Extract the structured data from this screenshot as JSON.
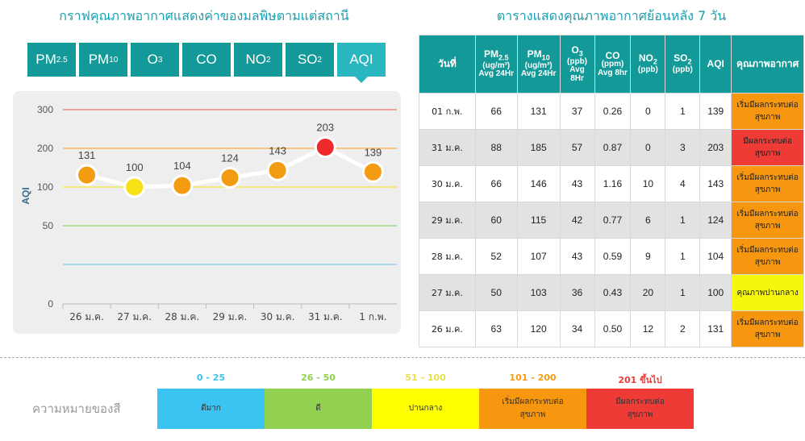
{
  "chart_title": "กราฟคุณภาพอากาศแสดงค่าของมลพิษตามแต่สถานี",
  "table_title": "ตารางแสดงคุณภาพอากาศย้อนหลัง 7 วัน",
  "tabs": [
    {
      "main": "PM",
      "sub": "2.5",
      "active": false
    },
    {
      "main": "PM",
      "sub": "10",
      "active": false
    },
    {
      "main": "O",
      "sub": "3",
      "active": false
    },
    {
      "main": "CO",
      "sub": "",
      "active": false
    },
    {
      "main": "NO",
      "sub": "2",
      "active": false
    },
    {
      "main": "SO",
      "sub": "2",
      "active": false
    },
    {
      "main": "AQI",
      "sub": "",
      "active": true
    }
  ],
  "chart_data": {
    "type": "line",
    "title": "",
    "ylabel": "AQI",
    "categories": [
      "26 ม.ค.",
      "27 ม.ค.",
      "28 ม.ค.",
      "29 ม.ค.",
      "30 ม.ค.",
      "31 ม.ค.",
      "1 ก.พ."
    ],
    "values": [
      131,
      100,
      104,
      124,
      143,
      203,
      139
    ],
    "point_colors": [
      "#f39c12",
      "#f7e016",
      "#f39c12",
      "#f39c12",
      "#f39c12",
      "#ee2a2a",
      "#f39c12"
    ],
    "y_ticks": [
      0,
      25,
      50,
      100,
      200,
      300
    ],
    "grid_lines": [
      {
        "value": 300,
        "color": "#f08a80"
      },
      {
        "value": 200,
        "color": "#f5b754"
      },
      {
        "value": 100,
        "color": "#f2e84a"
      },
      {
        "value": 50,
        "color": "#9fd67c"
      },
      {
        "value": 25,
        "color": "#8fd3ec"
      }
    ],
    "legend": "none"
  },
  "table": {
    "headers": [
      {
        "label": "วันที่",
        "sub": "",
        "unit": "",
        "thai": true
      },
      {
        "label": "PM",
        "sub": "2.5",
        "unit": "(ug/m³) Avg 24Hr",
        "thai": false
      },
      {
        "label": "PM",
        "sub": "10",
        "unit": "(ug/m³) Avg 24Hr",
        "thai": false
      },
      {
        "label": "O",
        "sub": "3",
        "unit": "(ppb) Avg 8Hr",
        "thai": false
      },
      {
        "label": "CO",
        "sub": "",
        "unit": "(ppm) Avg 8hr",
        "thai": false
      },
      {
        "label": "NO",
        "sub": "2",
        "unit": "(ppb)",
        "thai": false
      },
      {
        "label": "SO",
        "sub": "2",
        "unit": "(ppb)",
        "thai": false
      },
      {
        "label": "AQI",
        "sub": "",
        "unit": "",
        "thai": false
      },
      {
        "label": "คุณภาพอากาศ",
        "sub": "",
        "unit": "",
        "thai": true
      }
    ],
    "rows": [
      {
        "date": "01 ก.พ.",
        "pm25": "66",
        "pm10": "131",
        "o3": "37",
        "co": "0.26",
        "no2": "0",
        "so2": "1",
        "aqi": "139",
        "quality": "เริ่มมีผลกระทบต่อสุขภาพ",
        "color": "#f7960f"
      },
      {
        "date": "31 ม.ค.",
        "pm25": "88",
        "pm10": "185",
        "o3": "57",
        "co": "0.87",
        "no2": "0",
        "so2": "3",
        "aqi": "203",
        "quality": "มีผลกระทบต่อสุขภาพ",
        "color": "#ef3b36"
      },
      {
        "date": "30 ม.ค.",
        "pm25": "66",
        "pm10": "146",
        "o3": "43",
        "co": "1.16",
        "no2": "10",
        "so2": "4",
        "aqi": "143",
        "quality": "เริ่มมีผลกระทบต่อสุขภาพ",
        "color": "#f7960f"
      },
      {
        "date": "29 ม.ค.",
        "pm25": "60",
        "pm10": "115",
        "o3": "42",
        "co": "0.77",
        "no2": "6",
        "so2": "1",
        "aqi": "124",
        "quality": "เริ่มมีผลกระทบต่อสุขภาพ",
        "color": "#f7960f"
      },
      {
        "date": "28 ม.ค.",
        "pm25": "52",
        "pm10": "107",
        "o3": "43",
        "co": "0.59",
        "no2": "9",
        "so2": "1",
        "aqi": "104",
        "quality": "เริ่มมีผลกระทบต่อสุขภาพ",
        "color": "#f7960f"
      },
      {
        "date": "27 ม.ค.",
        "pm25": "50",
        "pm10": "103",
        "o3": "36",
        "co": "0.43",
        "no2": "20",
        "so2": "1",
        "aqi": "100",
        "quality": "คุณภาพปานกลาง",
        "color": "#f7f70e"
      },
      {
        "date": "26 ม.ค.",
        "pm25": "63",
        "pm10": "120",
        "o3": "34",
        "co": "0.50",
        "no2": "12",
        "so2": "2",
        "aqi": "131",
        "quality": "เริ่มมีผลกระทบต่อสุขภาพ",
        "color": "#f7960f"
      }
    ]
  },
  "legend": {
    "title": "ความหมายของสี",
    "items": [
      {
        "range": "0 - 25",
        "label": "ดีมาก",
        "color": "#3bc3f1",
        "range_color": "#3bc3f1"
      },
      {
        "range": "26 - 50",
        "label": "ดี",
        "color": "#92d051",
        "range_color": "#92d051"
      },
      {
        "range": "51 - 100",
        "label": "ปานกลาง",
        "color": "#ffff00",
        "range_color": "#e6e04a"
      },
      {
        "range": "101 - 200",
        "label": "เริ่มมีผลกระทบต่อสุขภาพ",
        "color": "#f7960f",
        "range_color": "#f39c12"
      },
      {
        "range": "201 ขึ้นไป",
        "label": "มีผลกระทบต่อสุขภาพ",
        "color": "#ef3b36",
        "range_color": "#ef3b36"
      }
    ]
  }
}
